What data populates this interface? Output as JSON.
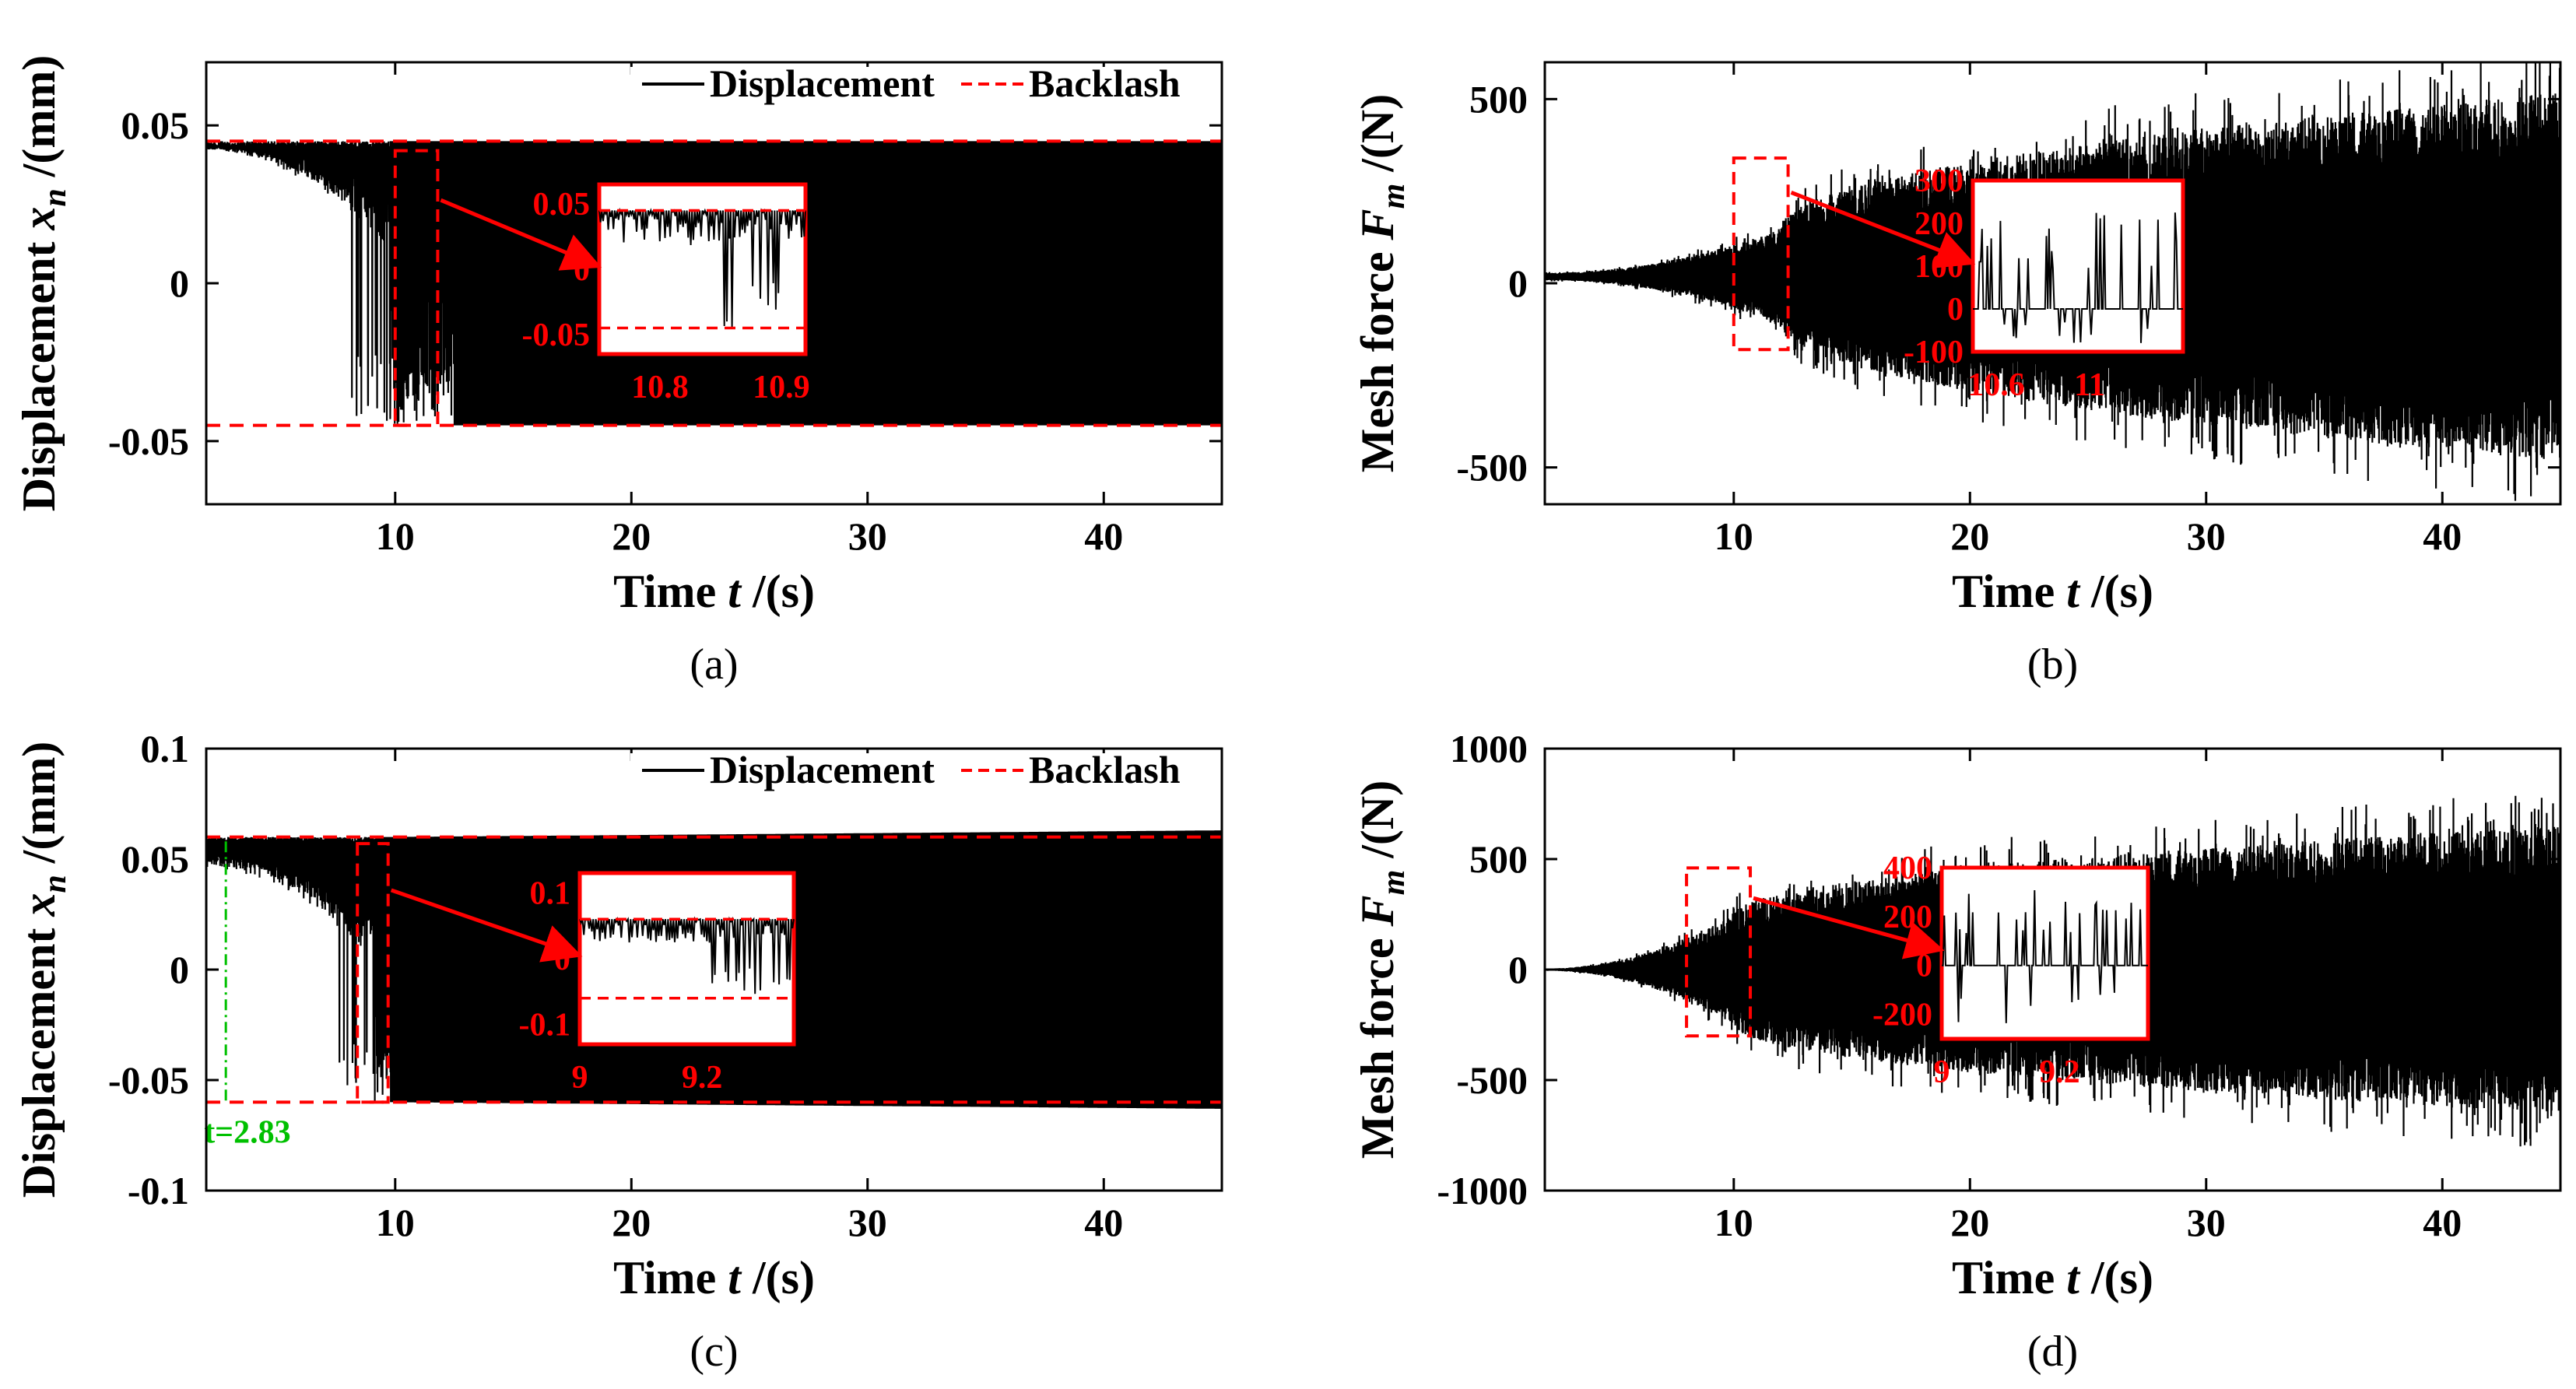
{
  "chart_data": [
    {
      "id": "a",
      "type": "line",
      "caption": "(a)",
      "xlabel_parts": [
        "Time ",
        "t",
        " /(s)"
      ],
      "ylabel_parts": [
        "Displacement ",
        "x",
        "n",
        " /(mm)"
      ],
      "xlim": [
        2,
        45
      ],
      "ylim": [
        -0.07,
        0.07
      ],
      "xticks": [
        10,
        20,
        30,
        40
      ],
      "xtick_labels": [
        "10",
        "20",
        "30",
        "40"
      ],
      "yticks": [
        -0.05,
        0,
        0.05
      ],
      "ytick_labels": [
        "-0.05",
        "0",
        "0.05"
      ],
      "legend": [
        "Displacement",
        "Backlash"
      ],
      "backlash": 0.045,
      "series": [
        {
          "name": "Displacement",
          "color": "#000000",
          "onset": 9.8,
          "full": 12.5,
          "pre_start": 0.043,
          "pre_end": 0.02,
          "amp_start": 0.045,
          "amp_end": 0.045
        }
      ],
      "zoom_rect": {
        "x": [
          10,
          11.8
        ],
        "y": [
          -0.045,
          0.042
        ]
      },
      "inset": {
        "xlim": [
          10.75,
          10.92
        ],
        "ylim": [
          -0.065,
          0.065
        ],
        "xticks": [
          10.8,
          10.9
        ],
        "xtick_labels": [
          "10.8",
          "10.9"
        ],
        "yticks": [
          -0.05,
          0,
          0.05
        ],
        "ytick_labels": [
          "-0.05",
          "0",
          "0.05"
        ],
        "lines": [
          0.045,
          -0.045
        ]
      }
    },
    {
      "id": "b",
      "type": "line",
      "caption": "(b)",
      "xlabel_parts": [
        "Time ",
        "t",
        " /(s)"
      ],
      "ylabel_parts": [
        "Mesh force ",
        "F",
        "m",
        " /(N)"
      ],
      "xlim": [
        2,
        45
      ],
      "ylim": [
        -600,
        600
      ],
      "xticks": [
        10,
        20,
        30,
        40
      ],
      "xtick_labels": [
        "10",
        "20",
        "30",
        "40"
      ],
      "yticks": [
        -500,
        0,
        500
      ],
      "ytick_labels": [
        "-500",
        "0",
        "500"
      ],
      "legend": [],
      "series": [
        {
          "name": "Mesh force",
          "color": "#000000",
          "center": 18,
          "ramp": [
            2,
            12,
            45
          ],
          "amp": [
            10,
            130,
            500
          ]
        }
      ],
      "zoom_rect": {
        "x": [
          10,
          12.3
        ],
        "y": [
          -180,
          340
        ]
      },
      "inset": {
        "xlim": [
          10.5,
          11.4
        ],
        "ylim": [
          -100,
          300
        ],
        "xticks": [
          10.6,
          11
        ],
        "xtick_labels": [
          "10.6",
          "11"
        ],
        "yticks": [
          -100,
          0,
          100,
          200,
          300
        ],
        "ytick_labels": [
          "-100",
          "0",
          "100",
          "200",
          "300"
        ],
        "baseline": 0
      }
    },
    {
      "id": "c",
      "type": "line",
      "caption": "(c)",
      "xlabel_parts": [
        "Time ",
        "t",
        " /(s)"
      ],
      "ylabel_parts": [
        "Displacement ",
        "x",
        "n",
        " /(mm)"
      ],
      "xlim": [
        2,
        45
      ],
      "ylim": [
        -0.1,
        0.1
      ],
      "xticks": [
        10,
        20,
        30,
        40
      ],
      "xtick_labels": [
        "10",
        "20",
        "30",
        "40"
      ],
      "yticks": [
        -0.1,
        -0.05,
        0,
        0.05,
        0.1
      ],
      "ytick_labels": [
        "-0.1",
        "-0.05",
        "0",
        "0.05",
        "0.1"
      ],
      "legend": [
        "Displacement",
        "Backlash"
      ],
      "backlash": 0.06,
      "series": [
        {
          "name": "Displacement",
          "color": "#000000",
          "onset": 9.2,
          "full": 9.8,
          "pre_start": 0.05,
          "pre_end": 0.02,
          "amp_start": 0.06,
          "amp_end": 0.063
        }
      ],
      "marker": {
        "x": 2.83,
        "label": "t=2.83",
        "color": "#00c000"
      },
      "zoom_rect": {
        "x": [
          8.4,
          9.7
        ],
        "y": [
          -0.06,
          0.057
        ]
      },
      "inset": {
        "xlim": [
          9,
          9.35
        ],
        "ylim": [
          -0.13,
          0.13
        ],
        "xticks": [
          9,
          9.2
        ],
        "xtick_labels": [
          "9",
          "9.2"
        ],
        "yticks": [
          -0.1,
          0,
          0.1
        ],
        "ytick_labels": [
          "-0.1",
          "0",
          "0.1"
        ],
        "lines": [
          0.06,
          -0.06
        ]
      }
    },
    {
      "id": "d",
      "type": "line",
      "caption": "(d)",
      "xlabel_parts": [
        "Time ",
        "t",
        " /(s)"
      ],
      "ylabel_parts": [
        "Mesh force ",
        "F",
        "m",
        " /(N)"
      ],
      "xlim": [
        2,
        45
      ],
      "ylim": [
        -1000,
        1000
      ],
      "xticks": [
        10,
        20,
        30,
        40
      ],
      "xtick_labels": [
        "10",
        "20",
        "30",
        "40"
      ],
      "yticks": [
        -1000,
        -500,
        0,
        500,
        1000
      ],
      "ytick_labels": [
        "-1000",
        "-500",
        "0",
        "500",
        "1000"
      ],
      "legend": [],
      "series": [
        {
          "name": "Mesh force",
          "color": "#000000",
          "center": 0,
          "ramp": [
            2,
            10,
            45
          ],
          "amp": [
            5,
            250,
            650
          ]
        }
      ],
      "zoom_rect": {
        "x": [
          8,
          10.7
        ],
        "y": [
          -300,
          460
        ]
      },
      "inset": {
        "xlim": [
          9,
          9.35
        ],
        "ylim": [
          -300,
          400
        ],
        "xticks": [
          9,
          9.2
        ],
        "xtick_labels": [
          "9",
          "9.2"
        ],
        "yticks": [
          -200,
          0,
          200,
          400
        ],
        "ytick_labels": [
          "-200",
          "0",
          "200",
          "400"
        ],
        "baseline": 0
      }
    }
  ]
}
